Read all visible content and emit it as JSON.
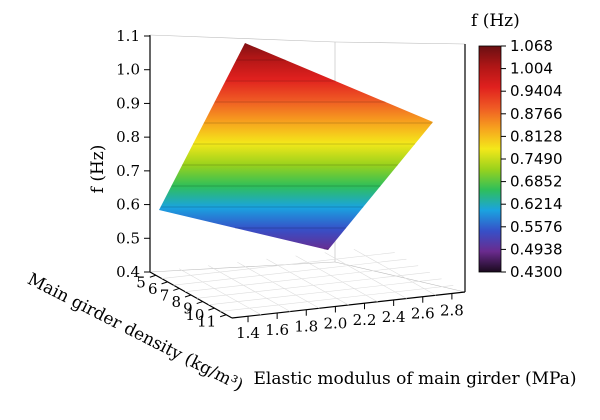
{
  "chart_data": {
    "type": "surface3d",
    "zlabel": "f (Hz)",
    "xlabel": "Main girder density (kg/m³)",
    "ylabel": "Elastic modulus of main girder (MPa)",
    "colorbar_title": "f (Hz)",
    "z_ticks": [
      "0.4",
      "0.5",
      "0.6",
      "0.7",
      "0.8",
      "0.9",
      "1.0",
      "1.1"
    ],
    "x_ticks": [
      "5",
      "6",
      "7",
      "8",
      "9",
      "10",
      "11"
    ],
    "y_ticks": [
      "1.4",
      "1.6",
      "1.8",
      "2.0",
      "2.2",
      "2.4",
      "2.6",
      "2.8"
    ],
    "colorbar_ticks": [
      "1.068",
      "1.004",
      "0.9404",
      "0.8766",
      "0.8128",
      "0.7490",
      "0.6852",
      "0.6214",
      "0.5576",
      "0.4938",
      "0.4300"
    ],
    "zlim": [
      0.4,
      1.1
    ],
    "colorbar_range": [
      0.43,
      1.068
    ],
    "surface_corners": [
      {
        "density": 5,
        "modulus": 1.4,
        "f": 0.57
      },
      {
        "density": 5,
        "modulus": 2.6,
        "f": 1.07
      },
      {
        "density": 11,
        "modulus": 1.4,
        "f": 0.43
      },
      {
        "density": 11,
        "modulus": 2.6,
        "f": 0.85
      }
    ],
    "colormap": [
      "#1a0a1e",
      "#6a2b8e",
      "#3650c8",
      "#1aa3e0",
      "#2fbf5a",
      "#9ad21c",
      "#f4e81a",
      "#f7a21e",
      "#ef5a24",
      "#e0201e",
      "#b01616",
      "#6a0f12"
    ]
  }
}
